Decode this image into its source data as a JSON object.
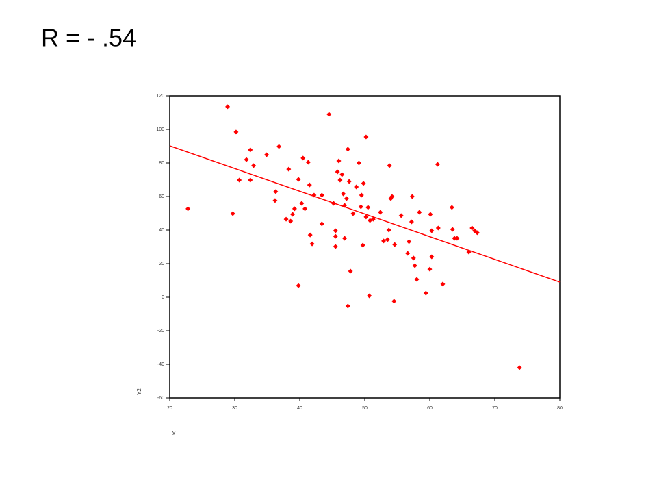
{
  "chart_data": {
    "type": "scatter",
    "title": "R = - .54",
    "xlabel": "X",
    "ylabel": "Y2",
    "color": "#ff0000",
    "x": [
      22.8,
      28.9,
      30.2,
      29.7,
      30.7,
      31.8,
      32.4,
      32.9,
      32.4,
      34.9,
      36.3,
      36.8,
      36.2,
      37.9,
      38.3,
      38.6,
      38.9,
      39.2,
      39.8,
      39.8,
      40.5,
      40.3,
      40.8,
      41.3,
      41.5,
      41.6,
      41.9,
      42.2,
      43.4,
      43.4,
      44.5,
      45.2,
      45.5,
      45.5,
      45.5,
      45.8,
      46.0,
      46.2,
      46.5,
      46.7,
      46.9,
      46.9,
      47.2,
      47.4,
      47.4,
      47.6,
      47.8,
      48.2,
      48.7,
      49.1,
      49.4,
      49.5,
      49.7,
      49.8,
      50.2,
      50.2,
      50.5,
      50.7,
      50.8,
      51.3,
      52.4,
      52.9,
      53.5,
      53.7,
      53.8,
      54.0,
      54.2,
      54.5,
      54.6,
      55.6,
      56.6,
      56.8,
      57.2,
      57.3,
      57.5,
      57.7,
      58.0,
      58.4,
      59.4,
      60.0,
      60.1,
      60.3,
      60.3,
      61.2,
      61.3,
      62.0,
      63.4,
      63.5,
      63.8,
      64.2,
      66.0,
      66.5,
      66.9,
      67.3,
      73.8
    ],
    "values": [
      52.7,
      113.5,
      98.4,
      49.8,
      69.8,
      82.0,
      87.8,
      78.4,
      69.8,
      84.9,
      62.9,
      89.8,
      57.6,
      46.5,
      76.3,
      45.3,
      49.4,
      52.7,
      70.2,
      6.9,
      82.9,
      55.9,
      52.7,
      80.4,
      66.9,
      37.1,
      31.8,
      60.8,
      60.8,
      43.7,
      109.0,
      55.9,
      39.6,
      36.3,
      30.2,
      74.7,
      81.2,
      69.8,
      73.1,
      61.6,
      54.7,
      35.1,
      58.8,
      -5.3,
      88.2,
      69.0,
      15.5,
      49.8,
      65.7,
      80.0,
      53.9,
      60.8,
      31.0,
      67.8,
      95.5,
      47.8,
      53.5,
      0.8,
      45.7,
      46.5,
      50.6,
      33.5,
      34.3,
      40.0,
      78.4,
      58.8,
      60.0,
      -2.4,
      31.4,
      48.6,
      26.1,
      33.1,
      44.9,
      60.0,
      23.3,
      18.8,
      10.6,
      50.6,
      2.4,
      16.7,
      49.4,
      24.1,
      39.6,
      79.2,
      41.2,
      7.8,
      53.5,
      40.4,
      35.1,
      35.1,
      26.9,
      41.2,
      39.6,
      38.4,
      -42.0
    ],
    "fit": {
      "x": [
        20,
        80
      ],
      "values": [
        90.2,
        9.0
      ],
      "color": "#ff0000"
    },
    "xlim": [
      20,
      80
    ],
    "ylim": [
      -60,
      120
    ],
    "xticks": [
      20,
      30,
      40,
      50,
      60,
      70,
      80
    ],
    "yticks": [
      -60,
      -40,
      -20,
      0,
      20,
      40,
      60,
      80,
      100,
      120
    ]
  }
}
